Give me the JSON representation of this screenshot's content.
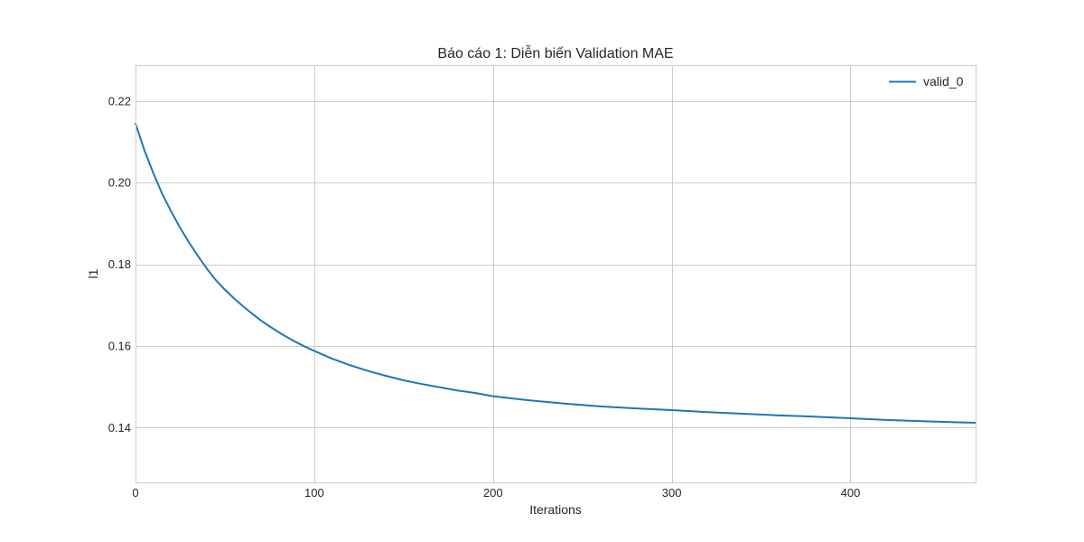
{
  "chart_data": {
    "type": "line",
    "title": "Báo cáo 1: Diễn biến Validation MAE",
    "xlabel": "Iterations",
    "ylabel": "l1",
    "xlim": [
      0,
      470
    ],
    "ylim": [
      0.1266,
      0.2288
    ],
    "xticks": [
      0,
      100,
      200,
      300,
      400
    ],
    "xtick_labels": [
      "0",
      "100",
      "200",
      "300",
      "400"
    ],
    "yticks": [
      0.14,
      0.16,
      0.18,
      0.2,
      0.22
    ],
    "ytick_labels": [
      "0.14",
      "0.16",
      "0.18",
      "0.20",
      "0.22"
    ],
    "grid": true,
    "legend_position": "top-right",
    "series": [
      {
        "name": "valid_0",
        "color": "#1f77b4",
        "x": [
          0,
          5,
          10,
          15,
          20,
          25,
          30,
          35,
          40,
          45,
          50,
          55,
          60,
          65,
          70,
          75,
          80,
          85,
          90,
          95,
          100,
          110,
          120,
          130,
          140,
          150,
          160,
          170,
          180,
          190,
          200,
          220,
          240,
          260,
          280,
          300,
          320,
          340,
          360,
          380,
          400,
          420,
          440,
          460,
          470
        ],
        "values": [
          0.2145,
          0.2079,
          0.2023,
          0.1972,
          0.1929,
          0.1889,
          0.1853,
          0.182,
          0.1789,
          0.1761,
          0.1738,
          0.1717,
          0.1698,
          0.168,
          0.1663,
          0.1648,
          0.1634,
          0.1621,
          0.1609,
          0.1598,
          0.1588,
          0.1569,
          0.1553,
          0.1539,
          0.1527,
          0.1516,
          0.1507,
          0.1499,
          0.1491,
          0.1485,
          0.1477,
          0.1467,
          0.1459,
          0.1452,
          0.1447,
          0.1443,
          0.1438,
          0.1434,
          0.143,
          0.1427,
          0.1423,
          0.1419,
          0.1416,
          0.1413,
          0.1412
        ]
      }
    ]
  }
}
